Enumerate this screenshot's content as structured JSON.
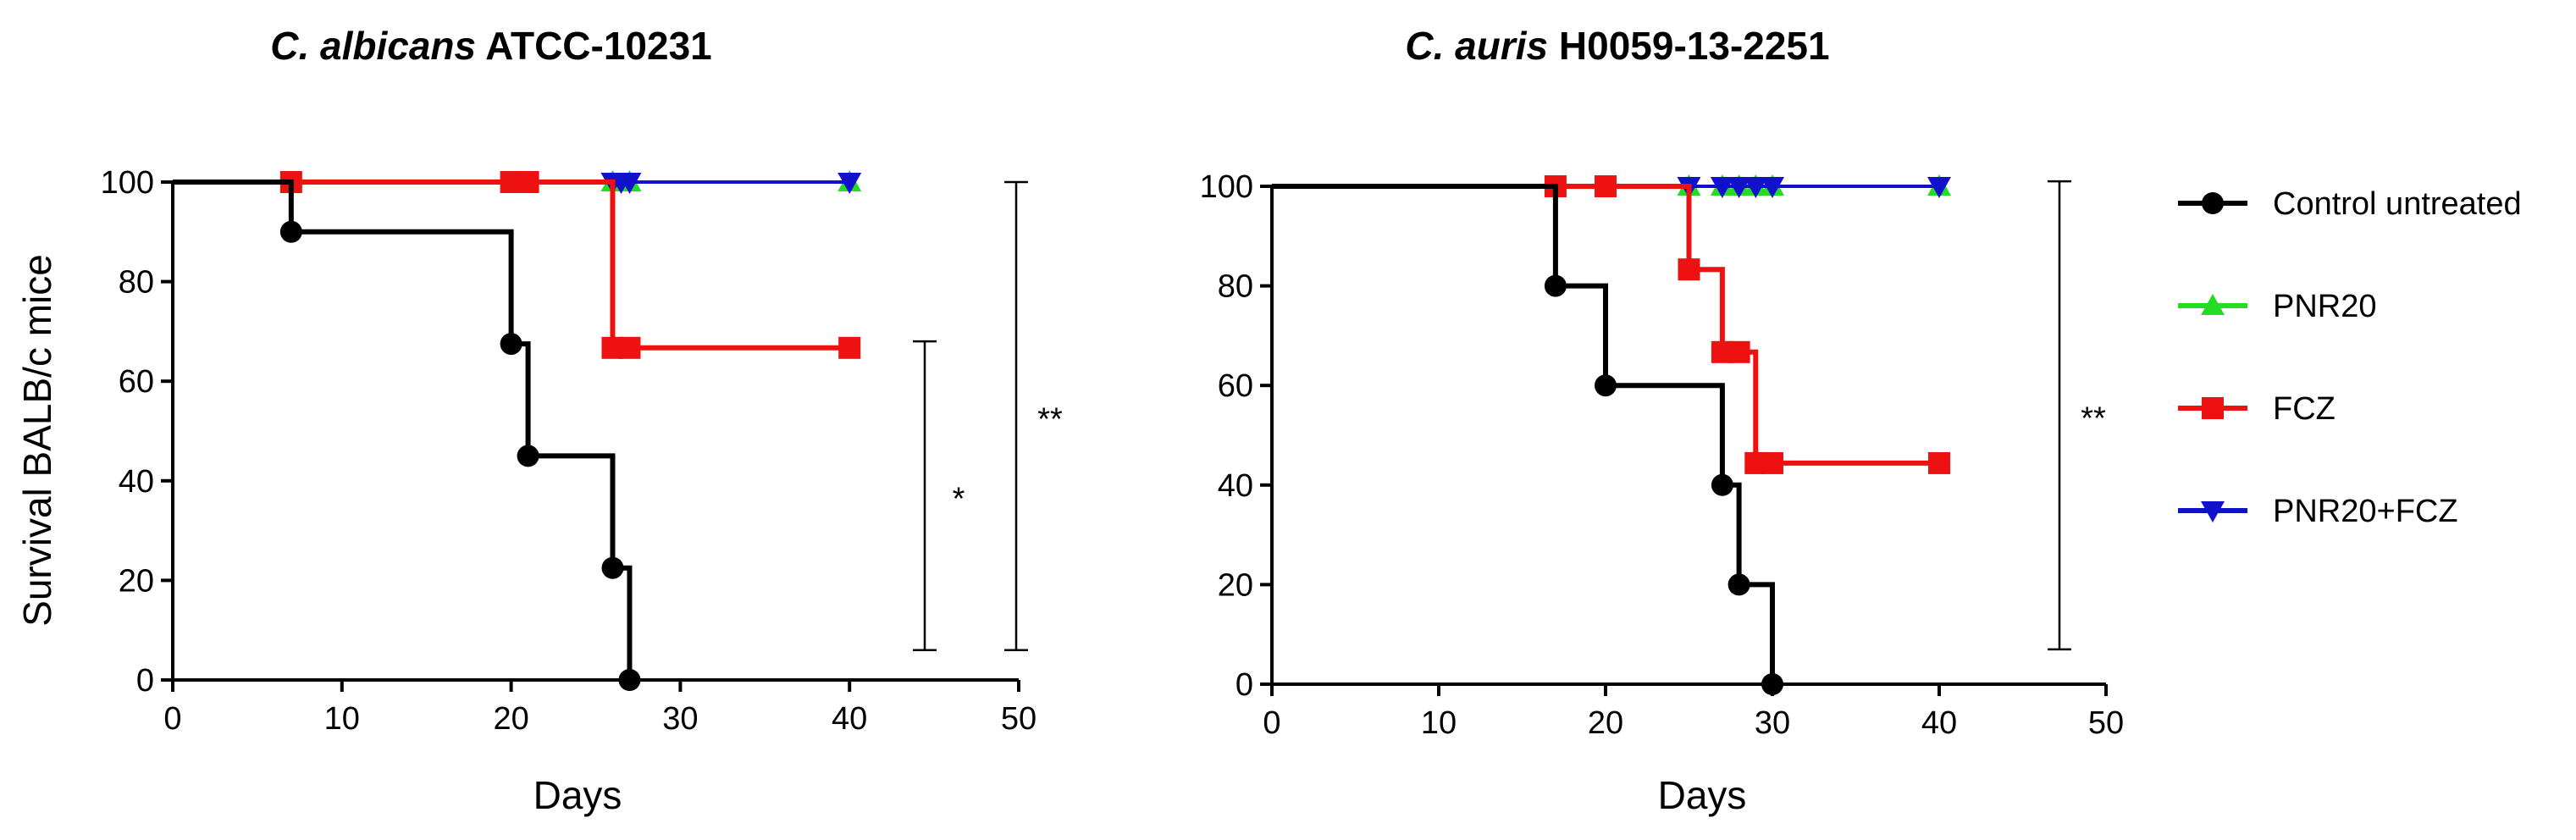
{
  "chart_data": [
    {
      "type": "line",
      "title_italic": "C. albicans",
      "title_rest": " ATCC-10231",
      "xlabel": "Days",
      "ylabel": "Survival BALB/c mice",
      "xlim": [
        0,
        50
      ],
      "ylim": [
        0,
        100
      ],
      "x_ticks": [
        "0",
        "10",
        "20",
        "30",
        "40",
        "50"
      ],
      "y_ticks": [
        "0",
        "20",
        "40",
        "60",
        "80",
        "100"
      ],
      "step": true,
      "series": [
        {
          "name": "Control untreated",
          "color": "#000000",
          "marker": "circle",
          "x": [
            0,
            7,
            20,
            21,
            26,
            27
          ],
          "y": [
            100,
            90,
            67.5,
            45,
            22.5,
            0
          ]
        },
        {
          "name": "PNR20",
          "color": "#22dd22",
          "marker": "triangle-up",
          "x": [
            0,
            26,
            27,
            40
          ],
          "y": [
            100,
            100,
            100,
            100
          ]
        },
        {
          "name": "FCZ",
          "color": "#ee1111",
          "marker": "square",
          "x": [
            0,
            7,
            20,
            21,
            26,
            27,
            40
          ],
          "y": [
            100,
            100,
            100,
            100,
            66.7,
            66.7,
            66.7
          ]
        },
        {
          "name": "PNR20+FCZ",
          "color": "#1111cc",
          "marker": "triangle-down",
          "x": [
            0,
            26,
            26.5,
            27,
            40
          ],
          "y": [
            100,
            100,
            100,
            100,
            100
          ]
        }
      ],
      "significance": [
        {
          "label": "*",
          "y_top": 68,
          "y_bottom": 6
        },
        {
          "label": "**",
          "y_top": 100,
          "y_bottom": 6
        }
      ]
    },
    {
      "type": "line",
      "title_italic": "C. auris",
      "title_rest": " H0059-13-2251",
      "xlabel": "Days",
      "ylabel": "",
      "xlim": [
        0,
        50
      ],
      "ylim": [
        0,
        100
      ],
      "x_ticks": [
        "0",
        "10",
        "20",
        "30",
        "40",
        "50"
      ],
      "y_ticks": [
        "0",
        "20",
        "40",
        "60",
        "80",
        "100"
      ],
      "step": true,
      "series": [
        {
          "name": "Control untreated",
          "color": "#000000",
          "marker": "circle",
          "x": [
            0,
            17,
            20,
            27,
            28,
            30
          ],
          "y": [
            100,
            80,
            60,
            40,
            20,
            0
          ]
        },
        {
          "name": "PNR20",
          "color": "#22dd22",
          "marker": "triangle-up",
          "x": [
            0,
            25,
            27,
            28,
            29,
            30,
            40
          ],
          "y": [
            100,
            100,
            100,
            100,
            100,
            100,
            100
          ]
        },
        {
          "name": "FCZ",
          "color": "#ee1111",
          "marker": "square",
          "x": [
            0,
            17,
            20,
            25,
            27,
            28,
            29,
            30,
            40
          ],
          "y": [
            100,
            100,
            100,
            83.3,
            66.7,
            66.7,
            44.4,
            44.4,
            44.4
          ]
        },
        {
          "name": "PNR20+FCZ",
          "color": "#1111cc",
          "marker": "triangle-down",
          "x": [
            0,
            25,
            27,
            28,
            29,
            30,
            40
          ],
          "y": [
            100,
            100,
            100,
            100,
            100,
            100,
            100
          ]
        }
      ],
      "significance": [
        {
          "label": "**",
          "y_top": 101,
          "y_bottom": 7
        }
      ]
    }
  ],
  "legend": {
    "position": "right",
    "items": [
      {
        "label": "Control untreated",
        "color": "#000000",
        "marker": "circle"
      },
      {
        "label": "PNR20",
        "color": "#22dd22",
        "marker": "triangle-up"
      },
      {
        "label": "FCZ",
        "color": "#ee1111",
        "marker": "square"
      },
      {
        "label": "PNR20+FCZ",
        "color": "#1111cc",
        "marker": "triangle-down"
      }
    ]
  }
}
